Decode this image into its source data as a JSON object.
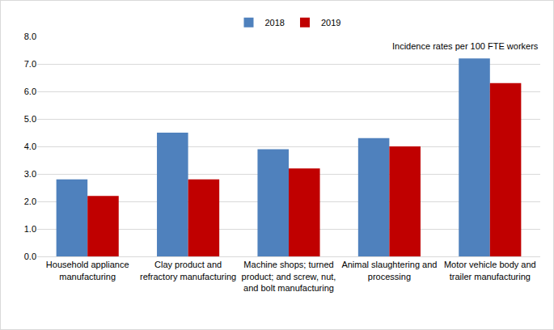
{
  "chart_data": {
    "type": "bar",
    "categories": [
      "Household appliance manufacturing",
      "Clay product and refractory manufacturing",
      "Machine shops; turned product; and screw, nut, and bolt manufacturing",
      "Animal slaughtering and processing",
      "Motor vehicle body and trailer manufacturing"
    ],
    "series": [
      {
        "name": "2018",
        "color": "#4f81bd",
        "values": [
          2.8,
          4.5,
          3.9,
          4.3,
          7.2
        ]
      },
      {
        "name": "2019",
        "color": "#c00000",
        "values": [
          2.2,
          2.8,
          3.2,
          4.0,
          6.3
        ]
      }
    ],
    "annotations": [
      "Incidence rates per 100 FTE workers"
    ],
    "ylim": [
      0,
      8
    ],
    "yticks": [
      {
        "value": 0,
        "label": "0.0"
      },
      {
        "value": 1,
        "label": "1.0"
      },
      {
        "value": 2,
        "label": "2.0"
      },
      {
        "value": 3,
        "label": "3.0"
      },
      {
        "value": 4,
        "label": "4.0"
      },
      {
        "value": 5,
        "label": "5.0"
      },
      {
        "value": 6,
        "label": "6.0"
      },
      {
        "value": 7,
        "label": "7.0"
      },
      {
        "value": 8,
        "label": "8.0"
      }
    ],
    "grid": true,
    "legend": "top"
  }
}
